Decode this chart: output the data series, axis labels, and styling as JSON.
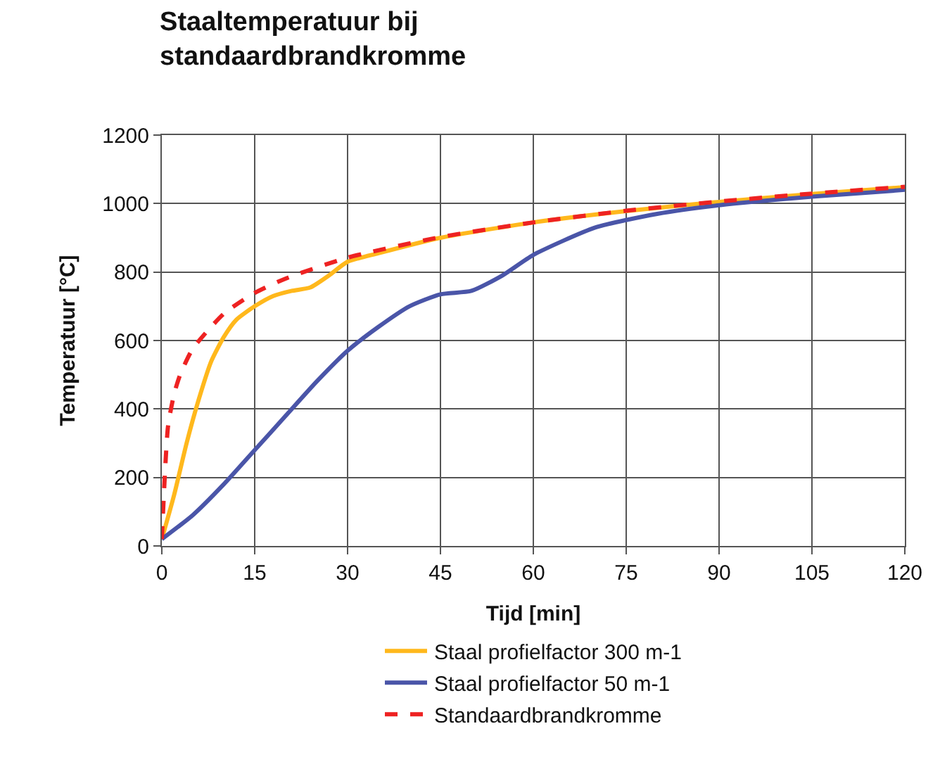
{
  "chart_data": {
    "type": "line",
    "title": "Staaltemperatuur bij\nstandaardbrandkromme",
    "xlabel": "Tijd [min]",
    "ylabel": "Temperatuur [°C]",
    "xlim": [
      0,
      120
    ],
    "xticks": [
      0,
      15,
      30,
      45,
      60,
      75,
      90,
      105,
      120
    ],
    "ylim": [
      0,
      1200
    ],
    "yticks": [
      0,
      200,
      400,
      600,
      800,
      1000,
      1200
    ],
    "grid": true,
    "legend": "bottom",
    "series": [
      {
        "name": "Staal profielfactor 300 m-1",
        "color": "#ffb81c",
        "line_style": "solid",
        "x": [
          0,
          2,
          4,
          6,
          8,
          10,
          12,
          15,
          18,
          21,
          24,
          27,
          30,
          35,
          45,
          60,
          75,
          90,
          105,
          120
        ],
        "values": [
          20,
          150,
          300,
          430,
          540,
          610,
          660,
          700,
          730,
          745,
          755,
          790,
          830,
          855,
          900,
          945,
          978,
          1005,
          1028,
          1048
        ]
      },
      {
        "name": "Staal profielfactor 50 m-1",
        "color": "#4a55a8",
        "line_style": "solid",
        "x": [
          0,
          5,
          10,
          15,
          20,
          25,
          30,
          35,
          40,
          45,
          50,
          55,
          60,
          70,
          80,
          90,
          105,
          120
        ],
        "values": [
          20,
          90,
          180,
          280,
          380,
          480,
          570,
          640,
          700,
          735,
          745,
          790,
          850,
          930,
          970,
          995,
          1020,
          1040
        ]
      },
      {
        "name": "Standaardbrandkromme",
        "color": "#ee2222",
        "line_style": "dashed",
        "x": [
          0,
          1,
          2,
          3,
          5,
          10,
          15,
          20,
          30,
          45,
          60,
          75,
          90,
          105,
          120
        ],
        "values": [
          20,
          349,
          445,
          502,
          576,
          678,
          739,
          781,
          842,
          902,
          945,
          979,
          1006,
          1029,
          1049
        ]
      }
    ]
  }
}
